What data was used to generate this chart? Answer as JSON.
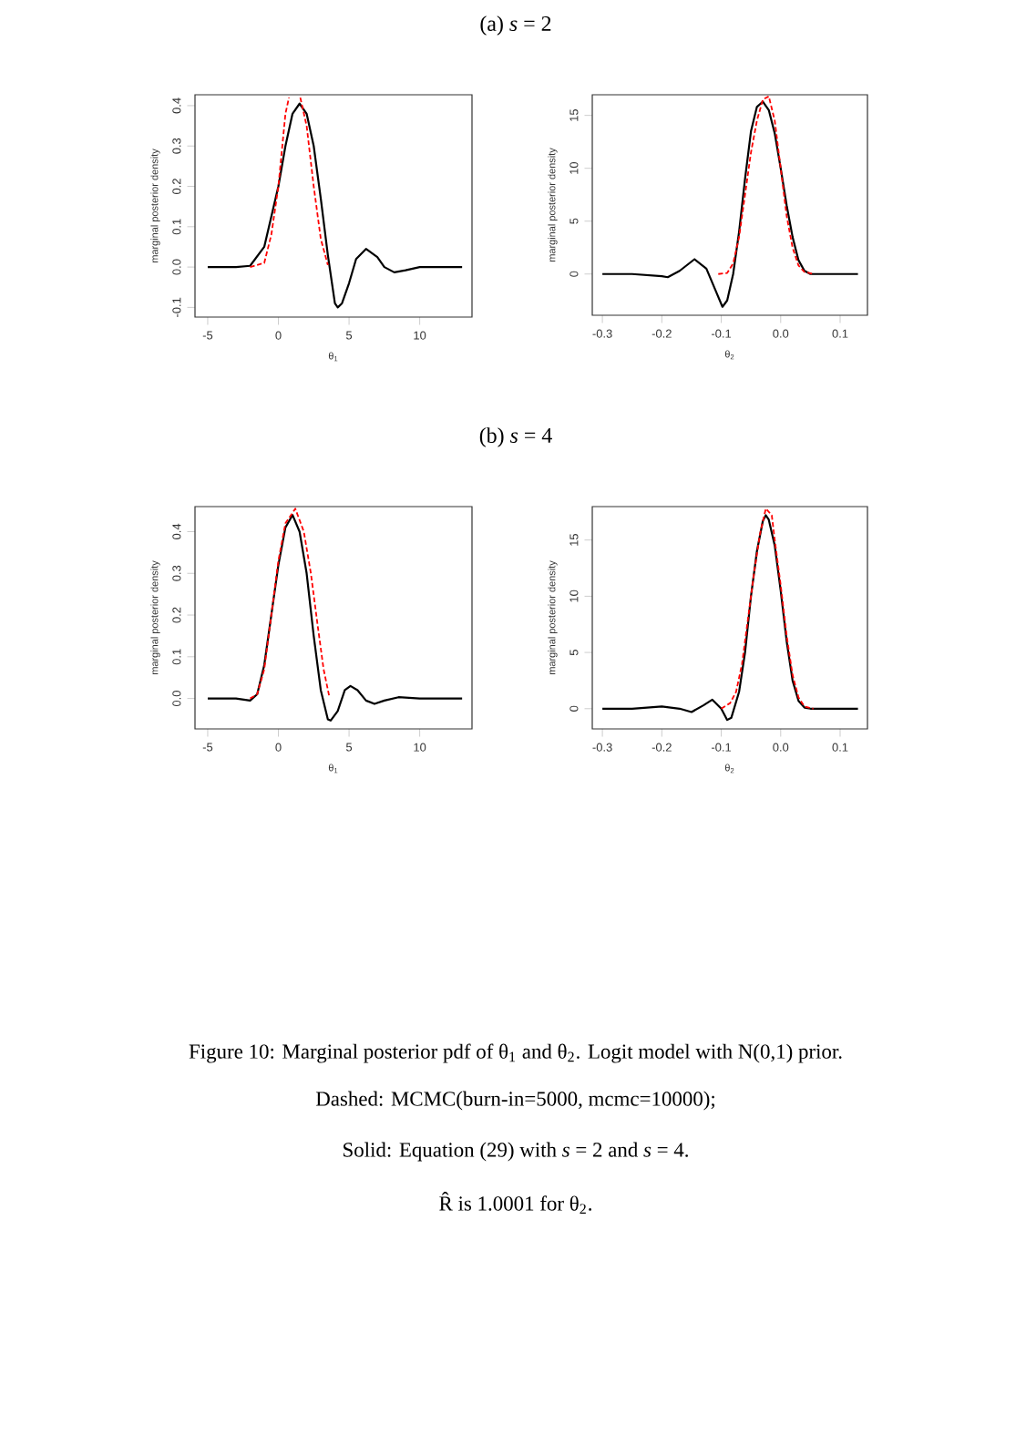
{
  "chart_data": [
    {
      "type": "line",
      "annotations": [
        "(a) *s* = 2"
      ],
      "xlabel": "θ$_{1}$",
      "ylabel": "marginal posterior density",
      "xlim": [
        -5.9,
        13.7
      ],
      "ylim": [
        -0.124,
        0.427
      ],
      "xticks": [
        -5,
        0,
        5,
        10
      ],
      "yticks": [
        -0.1,
        {
          "value": 0,
          "label": "0.0"
        },
        0.1,
        0.2,
        0.3,
        0.4
      ],
      "series": [
        {
          "color": "#000000",
          "line_style": "solid",
          "x": [
            -5,
            -3,
            -2,
            -1,
            0,
            0.5,
            1,
            1.5,
            2,
            2.5,
            3,
            3.5,
            4,
            4.2,
            4.5,
            5,
            5.5,
            6.2,
            7,
            7.5,
            8.2,
            9,
            10,
            11,
            13
          ],
          "values": [
            0,
            0,
            0.003,
            0.05,
            0.2,
            0.3,
            0.38,
            0.405,
            0.38,
            0.3,
            0.17,
            0.03,
            -0.09,
            -0.1,
            -0.09,
            -0.04,
            0.02,
            0.045,
            0.025,
            0.0,
            -0.013,
            -0.008,
            0,
            0,
            0
          ]
        },
        {
          "color": "#ff0000",
          "line_style": "dashed",
          "x": [
            -2,
            -1,
            -0.5,
            0,
            0.5,
            0.75,
            1.2,
            1.55,
            2,
            2.5,
            3,
            3.5
          ],
          "values": [
            0,
            0.01,
            0.08,
            0.2,
            0.38,
            0.42,
            null,
            0.42,
            0.35,
            0.2,
            0.07,
            0.005
          ]
        }
      ]
    },
    {
      "type": "line",
      "xlabel": "θ$_{2}$",
      "ylabel": "marginal posterior density",
      "xlim": [
        -0.317,
        0.146
      ],
      "ylim": [
        -3.9,
        16.95
      ],
      "xticks": [
        -0.3,
        -0.2,
        -0.1,
        {
          "value": 0,
          "label": "0.0"
        },
        0.1
      ],
      "yticks": [
        0,
        5,
        10,
        15
      ],
      "series": [
        {
          "color": "#000000",
          "line_style": "solid",
          "x": [
            -0.3,
            -0.25,
            -0.2,
            -0.19,
            -0.17,
            -0.145,
            -0.125,
            -0.11,
            -0.098,
            -0.09,
            -0.08,
            -0.07,
            -0.06,
            -0.05,
            -0.04,
            -0.03,
            -0.02,
            -0.01,
            0,
            0.01,
            0.02,
            0.03,
            0.04,
            0.05,
            0.07,
            0.13
          ],
          "values": [
            0,
            0,
            -0.2,
            -0.3,
            0.3,
            1.4,
            0.5,
            -1.5,
            -3.1,
            -2.5,
            0,
            4,
            9,
            13.5,
            15.8,
            16.3,
            15.5,
            13.3,
            10,
            6.5,
            3.5,
            1.3,
            0.3,
            0,
            0,
            0
          ]
        },
        {
          "color": "#ff0000",
          "line_style": "dashed",
          "x": [
            -0.105,
            -0.09,
            -0.08,
            -0.07,
            -0.06,
            -0.05,
            -0.04,
            -0.03,
            -0.02,
            -0.01,
            0,
            0.01,
            0.02,
            0.03,
            0.04,
            0.055
          ],
          "values": [
            0,
            0.1,
            1,
            3.5,
            7.5,
            11.5,
            14.5,
            16.5,
            16.8,
            14.5,
            10,
            5.5,
            2.5,
            0.8,
            0.2,
            0
          ]
        }
      ]
    },
    {
      "type": "line",
      "annotations": [
        "(b) *s* = 4"
      ],
      "xlabel": "θ$_{1}$",
      "ylabel": "marginal posterior density",
      "xlim": [
        -5.9,
        13.7
      ],
      "ylim": [
        -0.073,
        0.46
      ],
      "xticks": [
        -5,
        0,
        5,
        10
      ],
      "yticks": [
        {
          "value": 0,
          "label": "0.0"
        },
        0.1,
        0.2,
        0.3,
        0.4
      ],
      "series": [
        {
          "color": "#000000",
          "line_style": "solid",
          "x": [
            -5,
            -3,
            -2,
            -1.5,
            -1,
            -0.5,
            0,
            0.5,
            1,
            1.5,
            2,
            2.5,
            3,
            3.5,
            3.7,
            4.2,
            4.7,
            5.1,
            5.6,
            6.2,
            6.8,
            7.5,
            8.5,
            10,
            13
          ],
          "values": [
            0,
            0,
            -0.005,
            0.01,
            0.08,
            0.2,
            0.32,
            0.41,
            0.44,
            0.4,
            0.3,
            0.15,
            0.02,
            -0.05,
            -0.053,
            -0.03,
            0.02,
            0.03,
            0.02,
            -0.005,
            -0.013,
            -0.005,
            0.003,
            0,
            0
          ]
        },
        {
          "color": "#ff0000",
          "line_style": "dashed",
          "x": [
            -2,
            -1.5,
            -1,
            -0.5,
            0,
            0.5,
            1.2,
            1.8,
            2.3,
            2.8,
            3.2,
            3.6
          ],
          "values": [
            0,
            0.01,
            0.07,
            0.2,
            0.33,
            0.42,
            0.455,
            0.4,
            0.3,
            0.17,
            0.07,
            0.005
          ]
        }
      ]
    },
    {
      "type": "line",
      "xlabel": "θ$_{2}$",
      "ylabel": "marginal posterior density",
      "xlim": [
        -0.317,
        0.146
      ],
      "ylim": [
        -1.8,
        17.97
      ],
      "xticks": [
        -0.3,
        -0.2,
        -0.1,
        {
          "value": 0,
          "label": "0.0"
        },
        0.1
      ],
      "yticks": [
        0,
        5,
        10,
        15
      ],
      "annotations": [
        "Figure 10: Marginal posterior pdf of θ$_{1}$ and θ$_{2}$. Logit model with N(0,1) prior.",
        "Dashed: MCMC(burn-in=5000, mcmc=10000);",
        "Solid: Equation (29) with *s* = 2 and *s* = 4.",
        "R̂ is 1.0001 for θ$_{2}$."
      ],
      "series": [
        {
          "color": "#000000",
          "line_style": "solid",
          "x": [
            -0.3,
            -0.25,
            -0.2,
            -0.17,
            -0.15,
            -0.13,
            -0.115,
            -0.1,
            -0.09,
            -0.083,
            -0.07,
            -0.06,
            -0.05,
            -0.04,
            -0.03,
            -0.025,
            -0.02,
            -0.01,
            0,
            0.01,
            0.02,
            0.03,
            0.04,
            0.05,
            0.13
          ],
          "values": [
            0,
            0,
            0.2,
            0,
            -0.3,
            0.3,
            0.8,
            0,
            -1.0,
            -0.8,
            1.5,
            5,
            10,
            14,
            16.7,
            17.2,
            16.8,
            14.5,
            10.5,
            6,
            2.5,
            0.7,
            0.1,
            0,
            0
          ]
        },
        {
          "color": "#ff0000",
          "line_style": "dashed",
          "x": [
            -0.1,
            -0.085,
            -0.075,
            -0.065,
            -0.055,
            -0.045,
            -0.035,
            -0.025,
            -0.015,
            -0.01,
            0,
            0.01,
            0.02,
            0.03,
            0.04,
            0.055
          ],
          "values": [
            0,
            0.5,
            1.5,
            4,
            8,
            12,
            15.5,
            17.8,
            17.2,
            15,
            11,
            6.5,
            3,
            1,
            0.2,
            0
          ]
        }
      ]
    }
  ]
}
